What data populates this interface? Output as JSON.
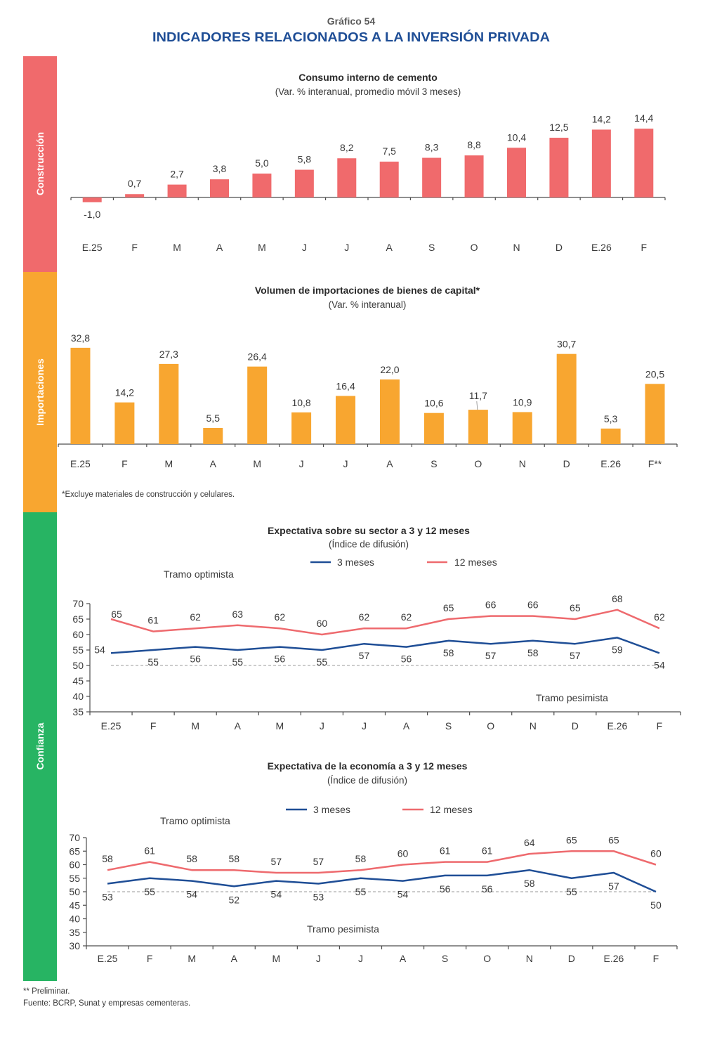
{
  "header": {
    "chart_number": "Gráfico 54",
    "title": "INDICADORES RELACIONADOS A LA INVERSIÓN PRIVADA"
  },
  "sections": {
    "construccion": "Construcción",
    "importaciones": "Importaciones",
    "confianza": "Confianza"
  },
  "colors": {
    "construccion": "#f06a6c",
    "importaciones": "#f8a630",
    "confianza": "#27b463",
    "series_3m": "#1f4e96",
    "series_12m": "#ee6a6e",
    "header_title": "#1f4e96"
  },
  "footnotes": {
    "preliminar": "** Preliminar.",
    "fuente": "Fuente: BCRP, Sunat y empresas cementeras."
  },
  "chart_data": [
    {
      "type": "bar",
      "section": "Construcción",
      "title": "Consumo interno de cemento",
      "subtitle": "(Var. % interanual, promedio móvil 3 meses)",
      "xlabel": "",
      "ylabel": "",
      "categories": [
        "E.25",
        "F",
        "M",
        "A",
        "M",
        "J",
        "J",
        "A",
        "S",
        "O",
        "N",
        "D",
        "E.26",
        "F"
      ],
      "values": [
        -1.0,
        0.7,
        2.7,
        3.8,
        5.0,
        5.8,
        8.2,
        7.5,
        8.3,
        8.8,
        10.4,
        12.5,
        14.2,
        14.4
      ],
      "labels": [
        "-1,0",
        "0,7",
        "2,7",
        "3,8",
        "5,0",
        "5,8",
        "8,2",
        "7,5",
        "8,3",
        "8,8",
        "10,4",
        "12,5",
        "14,2",
        "14,4"
      ],
      "color": "#f06a6c",
      "grid": false
    },
    {
      "type": "bar",
      "section": "Importaciones",
      "title": "Volumen de importaciones de bienes de capital*",
      "subtitle": "(Var. % interanual)",
      "xlabel": "",
      "ylabel": "",
      "categories": [
        "E.25",
        "F",
        "M",
        "A",
        "M",
        "J",
        "J",
        "A",
        "S",
        "O",
        "N",
        "D",
        "E.26",
        "F**"
      ],
      "values": [
        32.8,
        14.2,
        27.3,
        5.5,
        26.4,
        10.8,
        16.4,
        22.0,
        10.6,
        11.7,
        10.9,
        30.7,
        5.3,
        20.5
      ],
      "labels": [
        "32,8",
        "14,2",
        "27,3",
        "5,5",
        "26,4",
        "10,8",
        "16,4",
        "22,0",
        "10,6",
        "11,7",
        "10,9",
        "30,7",
        "5,3",
        "20,5"
      ],
      "color": "#f8a630",
      "footnote": "*Excluye materiales de construcción y celulares.",
      "grid": false
    },
    {
      "type": "line",
      "section": "Confianza",
      "title": "Expectativa sobre su sector a 3 y 12 meses",
      "subtitle": "(Índice de difusión)",
      "xlabel": "",
      "ylabel": "",
      "categories": [
        "E.25",
        "F",
        "M",
        "A",
        "M",
        "J",
        "J",
        "A",
        "S",
        "O",
        "N",
        "D",
        "E.26",
        "F"
      ],
      "series": [
        {
          "name": "3 meses",
          "color": "#1f4e96",
          "values": [
            54,
            55,
            56,
            55,
            56,
            55,
            57,
            56,
            58,
            57,
            58,
            57,
            59,
            54
          ]
        },
        {
          "name": "12 meses",
          "color": "#ee6a6e",
          "values": [
            65,
            61,
            62,
            63,
            62,
            60,
            62,
            62,
            65,
            66,
            66,
            65,
            68,
            62
          ]
        }
      ],
      "ylim": [
        35,
        70
      ],
      "yticks": [
        35,
        40,
        45,
        50,
        55,
        60,
        65,
        70
      ],
      "reference_line": 50,
      "annotations": {
        "upper": "Tramo optimista",
        "lower": "Tramo pesimista"
      },
      "legend": "top-center",
      "grid": false
    },
    {
      "type": "line",
      "section": "Confianza",
      "title": "Expectativa de la economía a 3 y 12 meses",
      "subtitle": "(Índice de difusión)",
      "xlabel": "",
      "ylabel": "",
      "categories": [
        "E.25",
        "F",
        "M",
        "A",
        "M",
        "J",
        "J",
        "A",
        "S",
        "O",
        "N",
        "D",
        "E.26",
        "F"
      ],
      "series": [
        {
          "name": "3 meses",
          "color": "#1f4e96",
          "values": [
            53,
            55,
            54,
            52,
            54,
            53,
            55,
            54,
            56,
            56,
            58,
            55,
            57,
            50
          ]
        },
        {
          "name": "12 meses",
          "color": "#ee6a6e",
          "values": [
            58,
            61,
            58,
            58,
            57,
            57,
            58,
            60,
            61,
            61,
            64,
            65,
            65,
            60
          ]
        }
      ],
      "ylim": [
        30,
        70
      ],
      "yticks": [
        30,
        35,
        40,
        45,
        50,
        55,
        60,
        65,
        70
      ],
      "reference_line": 50,
      "annotations": {
        "upper": "Tramo optimista",
        "lower": "Tramo pesimista"
      },
      "legend": "top-center",
      "grid": false
    }
  ]
}
